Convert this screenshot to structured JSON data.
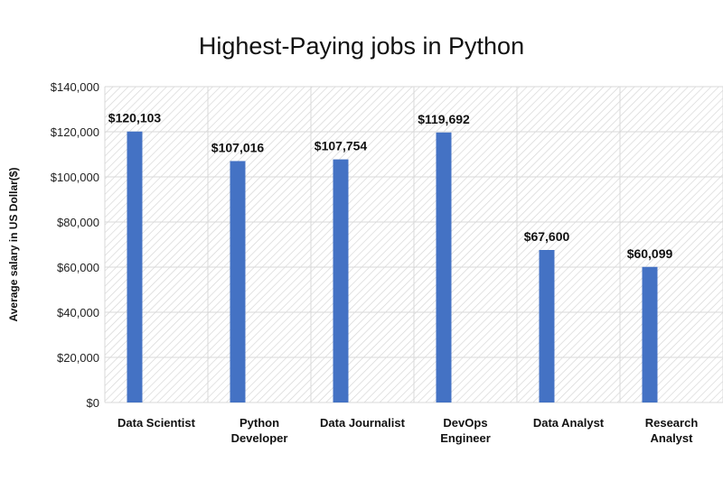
{
  "chart_data": {
    "type": "bar",
    "title": "Highest-Paying jobs in Python",
    "xlabel": "",
    "ylabel": "Average salary in US Dollar($)",
    "categories": [
      [
        "Data Scientist"
      ],
      [
        "Python",
        "Developer"
      ],
      [
        "Data Journalist"
      ],
      [
        "DevOps",
        "Engineer"
      ],
      [
        "Data Analyst"
      ],
      [
        "Research",
        "Analyst"
      ]
    ],
    "values": [
      120103,
      107016,
      107754,
      119692,
      67600,
      60099
    ],
    "data_labels": [
      "$120,103",
      "$107,016",
      "$107,754",
      "$119,692",
      "$67,600",
      "$60,099"
    ],
    "ylim": [
      0,
      140000
    ],
    "yticks": [
      0,
      20000,
      40000,
      60000,
      80000,
      100000,
      120000,
      140000
    ],
    "ytick_labels": [
      "$0",
      "$20,000",
      "$40,000",
      "$60,000",
      "$80,000",
      "$100,000",
      "$120,000",
      "$140,000"
    ],
    "grid": true,
    "bar_color": "#4472C4",
    "background": "diagonal hatch"
  }
}
